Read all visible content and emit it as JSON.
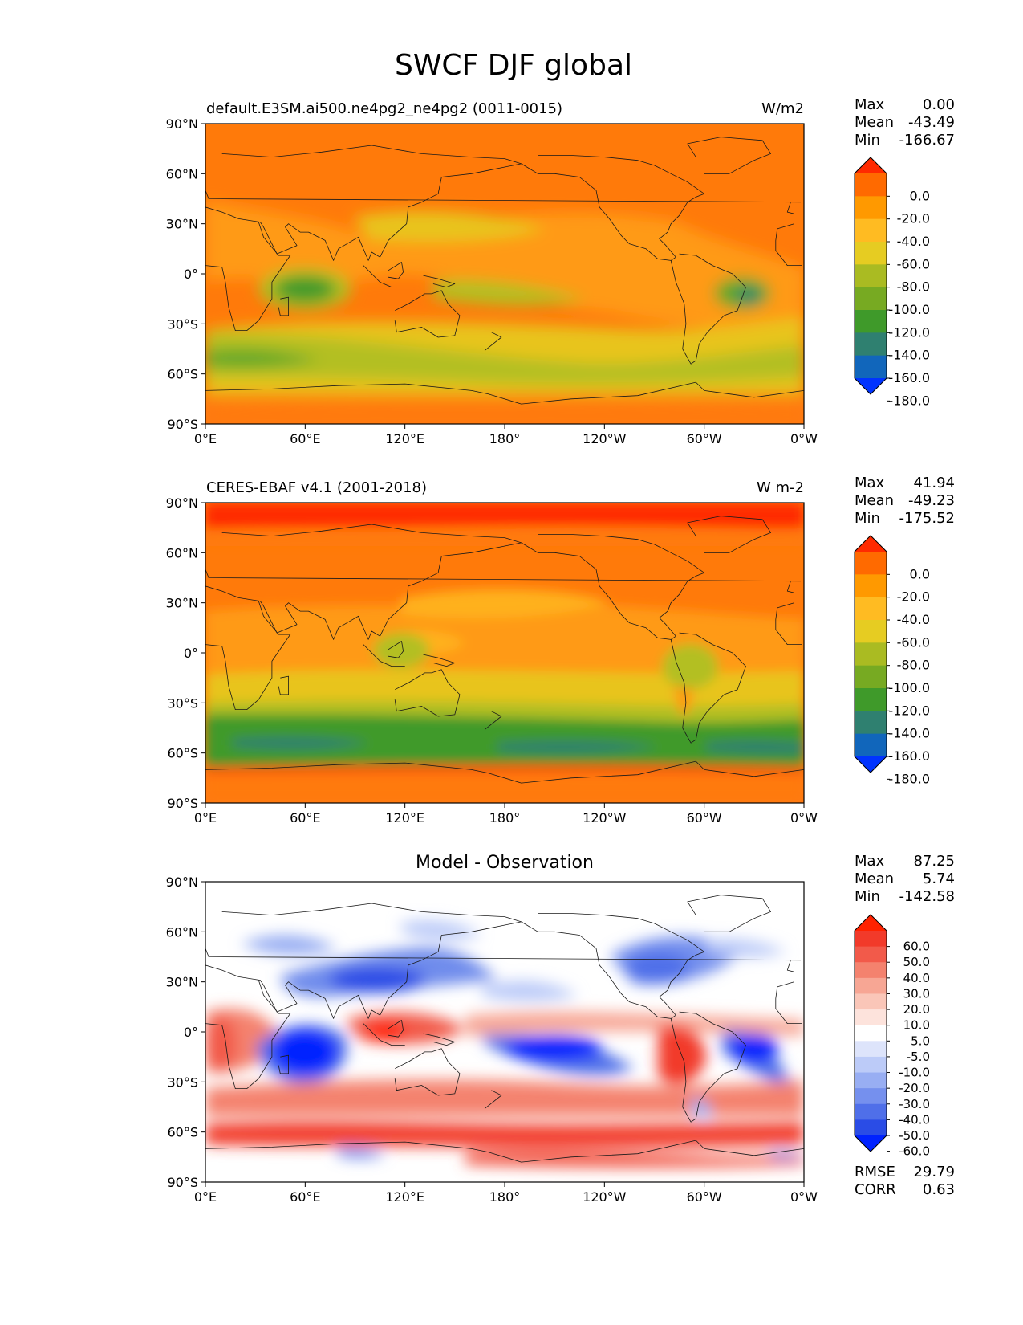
{
  "figure": {
    "title": "SWCF DJF global"
  },
  "lat_ticks": [
    "90°N",
    "60°N",
    "30°N",
    "0°",
    "30°S",
    "60°S",
    "90°S"
  ],
  "lon_ticks": [
    "0°E",
    "60°E",
    "120°E",
    "180°",
    "120°W",
    "60°W",
    "0°W"
  ],
  "panels": [
    {
      "left_title": "default.E3SM.ai500.ne4pg2_ne4pg2 (0011-0015)",
      "center_title": "",
      "right_title": "W/m2",
      "stats": [
        {
          "label": "Max",
          "value": "0.00"
        },
        {
          "label": "Mean",
          "value": "-43.49"
        },
        {
          "label": "Min",
          "value": "-166.67"
        }
      ],
      "extra_stats": []
    },
    {
      "left_title": "CERES-EBAF v4.1 (2001-2018)",
      "center_title": "",
      "right_title": "W m-2",
      "stats": [
        {
          "label": "Max",
          "value": "41.94"
        },
        {
          "label": "Mean",
          "value": "-49.23"
        },
        {
          "label": "Min",
          "value": "-175.52"
        }
      ],
      "extra_stats": []
    },
    {
      "left_title": "",
      "center_title": "Model - Observation",
      "right_title": "",
      "stats": [
        {
          "label": "Max",
          "value": "87.25"
        },
        {
          "label": "Mean",
          "value": "5.74"
        },
        {
          "label": "Min",
          "value": "-142.58"
        }
      ],
      "extra_stats": [
        {
          "label": "RMSE",
          "value": "29.79"
        },
        {
          "label": "CORR",
          "value": "0.63"
        }
      ]
    }
  ],
  "chart_data": [
    {
      "type": "heatmap",
      "title": "default.E3SM.ai500.ne4pg2_ne4pg2 (0011-0015)",
      "units": "W/m2",
      "xlim": [
        0,
        360
      ],
      "ylim": [
        -90,
        90
      ],
      "colorbar": {
        "levels": [
          "0.0",
          "-20.0",
          "-40.0",
          "-60.0",
          "-80.0",
          "-100.0",
          "-120.0",
          "-140.0",
          "-160.0",
          "-180.0"
        ],
        "colors": [
          "#ff2a00",
          "#ff6a00",
          "#ff9900",
          "#ffbb22",
          "#e6cc22",
          "#aabb22",
          "#77aa22",
          "#3f9a2a",
          "#2f8070",
          "#1166bb",
          "#0033ff"
        ]
      },
      "stats": {
        "max": 0.0,
        "mean": -43.49,
        "min": -166.67
      }
    },
    {
      "type": "heatmap",
      "title": "CERES-EBAF v4.1 (2001-2018)",
      "units": "W m-2",
      "xlim": [
        0,
        360
      ],
      "ylim": [
        -90,
        90
      ],
      "colorbar": {
        "levels": [
          "0.0",
          "-20.0",
          "-40.0",
          "-60.0",
          "-80.0",
          "-100.0",
          "-120.0",
          "-140.0",
          "-160.0",
          "-180.0"
        ],
        "colors": [
          "#ff2a00",
          "#ff6a00",
          "#ff9900",
          "#ffbb22",
          "#e6cc22",
          "#aabb22",
          "#77aa22",
          "#3f9a2a",
          "#2f8070",
          "#1166bb",
          "#0033ff"
        ]
      },
      "stats": {
        "max": 41.94,
        "mean": -49.23,
        "min": -175.52
      }
    },
    {
      "type": "heatmap",
      "title": "Model - Observation",
      "xlim": [
        0,
        360
      ],
      "ylim": [
        -90,
        90
      ],
      "colorbar": {
        "levels": [
          "60.0",
          "50.0",
          "40.0",
          "30.0",
          "20.0",
          "10.0",
          "5.0",
          "-5.0",
          "-10.0",
          "-20.0",
          "-30.0",
          "-40.0",
          "-50.0",
          "-60.0"
        ],
        "colors": [
          "#ff2200",
          "#f23a2a",
          "#f25a4a",
          "#f4826e",
          "#f7a694",
          "#fac6b8",
          "#fde3dc",
          "#ffffff",
          "#dde4fb",
          "#bccbf8",
          "#98aef3",
          "#7590ee",
          "#4f6fe9",
          "#2a4ce6",
          "#0022ff"
        ]
      },
      "stats": {
        "max": 87.25,
        "mean": 5.74,
        "min": -142.58,
        "rmse": 29.79,
        "corr": 0.63
      }
    }
  ]
}
